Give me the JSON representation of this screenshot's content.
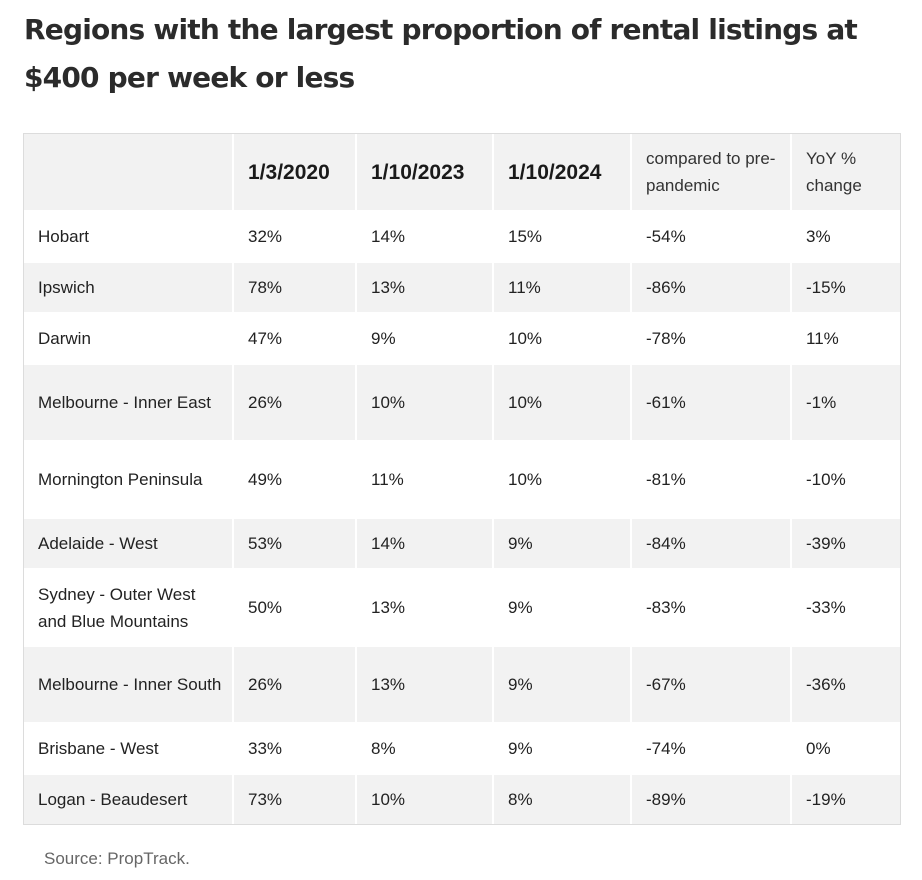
{
  "title": "Regions with the largest proportion of rental listings at $400 per week or less",
  "table": {
    "headers": [
      "",
      "1/3/2020",
      "1/10/2023",
      "1/10/2024",
      "compared to pre-pandemic",
      "YoY % change"
    ],
    "rows": [
      [
        "Hobart",
        "32%",
        "14%",
        "15%",
        "-54%",
        "3%"
      ],
      [
        "Ipswich",
        "78%",
        "13%",
        "11%",
        "-86%",
        "-15%"
      ],
      [
        "Darwin",
        "47%",
        "9%",
        "10%",
        "-78%",
        "11%"
      ],
      [
        "Melbourne - Inner East",
        "26%",
        "10%",
        "10%",
        "-61%",
        "-1%"
      ],
      [
        "Mornington Peninsula",
        "49%",
        "11%",
        "10%",
        "-81%",
        "-10%"
      ],
      [
        "Adelaide - West",
        "53%",
        "14%",
        "9%",
        "-84%",
        "-39%"
      ],
      [
        "Sydney - Outer West and Blue Mountains",
        "50%",
        "13%",
        "9%",
        "-83%",
        "-33%"
      ],
      [
        "Melbourne - Inner South",
        "26%",
        "13%",
        "9%",
        "-67%",
        "-36%"
      ],
      [
        "Brisbane - West",
        "33%",
        "8%",
        "9%",
        "-74%",
        "0%"
      ],
      [
        "Logan - Beaudesert",
        "73%",
        "10%",
        "8%",
        "-89%",
        "-19%"
      ]
    ]
  },
  "source": "Source: PropTrack."
}
